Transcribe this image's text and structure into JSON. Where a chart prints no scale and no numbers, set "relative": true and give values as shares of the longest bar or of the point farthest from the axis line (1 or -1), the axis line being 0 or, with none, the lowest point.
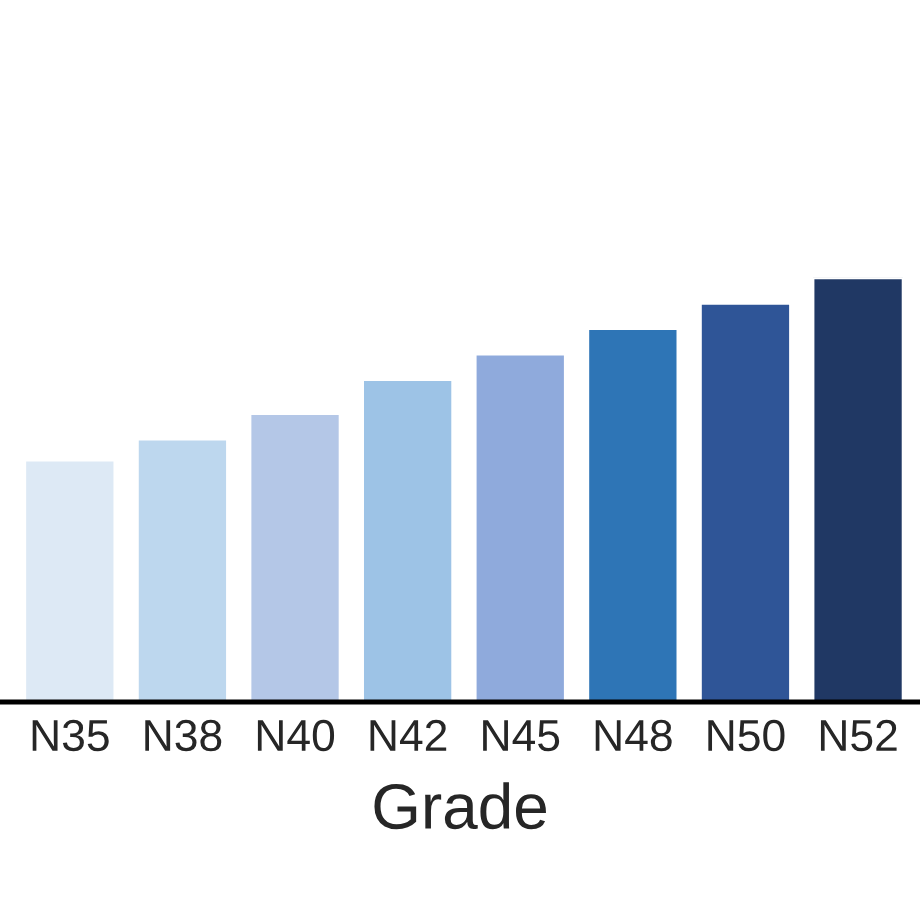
{
  "chart_data": {
    "type": "bar",
    "xlabel": "Grade",
    "relative": true,
    "tick_labels": "x",
    "categories": [
      "N35",
      "N38",
      "N40",
      "N42",
      "N45",
      "N48",
      "N50",
      "N52"
    ],
    "values": [
      0.57,
      0.62,
      0.68,
      0.76,
      0.82,
      0.88,
      0.94,
      1
    ],
    "colors": [
      "#dde9f5",
      "#bdd7ee",
      "#b4c7e7",
      "#9dc3e6",
      "#8faadc",
      "#2e75b6",
      "#2f5597",
      "#203864"
    ]
  }
}
